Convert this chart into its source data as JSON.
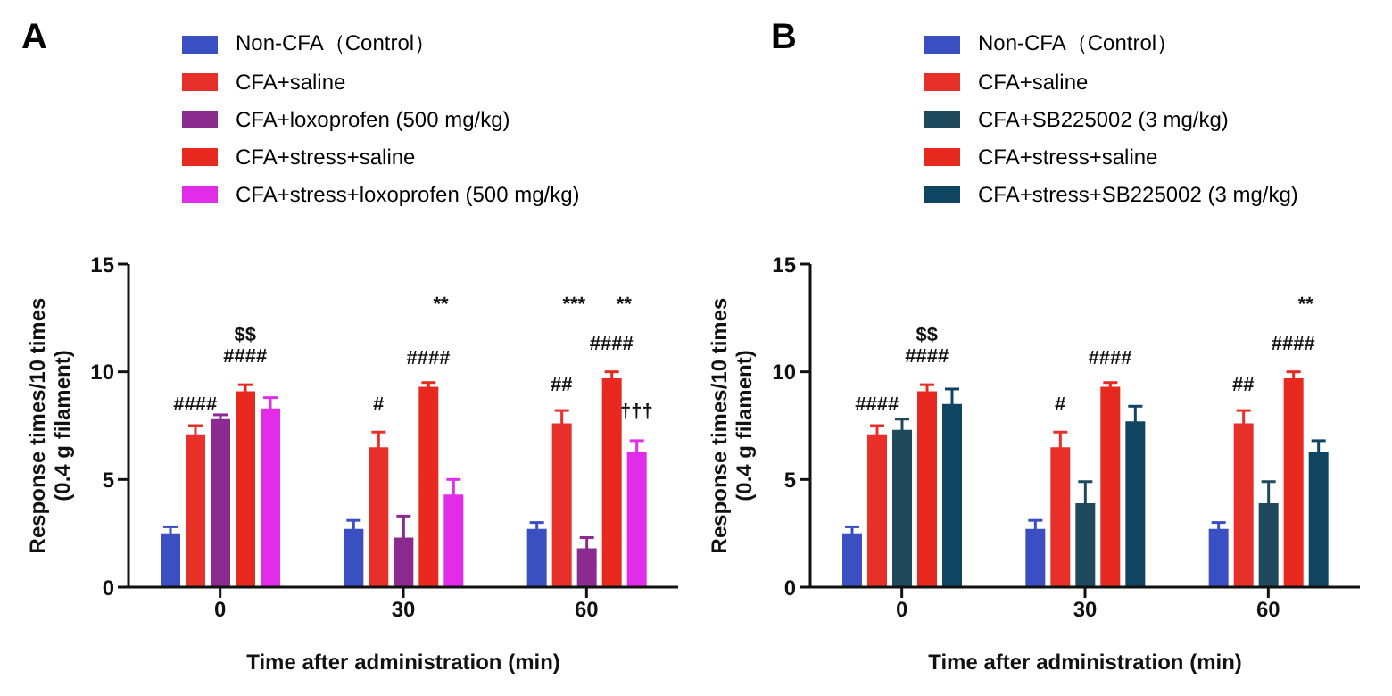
{
  "chart_data": [
    {
      "type": "bar",
      "title": "A",
      "categories": [
        "0",
        "30",
        "60"
      ],
      "xlabel": "Time after administration (min)",
      "ylabel": "Response times/10 times\n(0.4 g filament)",
      "ylim": [
        0,
        15
      ],
      "yticks": [
        0,
        5,
        10,
        15
      ],
      "grid": false,
      "legend": "top",
      "series": [
        {
          "name": "Non-CFA（Control）",
          "color": "#3a4fc1",
          "values": [
            2.5,
            2.7,
            2.7
          ],
          "errors": [
            0.3,
            0.4,
            0.3
          ]
        },
        {
          "name": "CFA+saline",
          "color": "#e8302a",
          "values": [
            7.1,
            6.5,
            7.6
          ],
          "errors": [
            0.4,
            0.7,
            0.6
          ]
        },
        {
          "name": "CFA+loxoprofen (500 mg/kg)",
          "color": "#8b2a8f",
          "values": [
            7.8,
            2.3,
            1.8
          ],
          "errors": [
            0.2,
            1.0,
            0.5
          ]
        },
        {
          "name": "CFA+stress+saline",
          "color": "#e8291f",
          "values": [
            9.1,
            9.3,
            9.7
          ],
          "errors": [
            0.3,
            0.2,
            0.3
          ]
        },
        {
          "name": "CFA+stress+loxoprofen (500 mg/kg)",
          "color": "#e22de8",
          "values": [
            8.3,
            4.3,
            6.3
          ],
          "errors": [
            0.5,
            0.7,
            0.5
          ]
        }
      ],
      "annotations": [
        "####",
        "####",
        "$$",
        "#",
        "####",
        "**",
        "##",
        "####",
        "***",
        "**",
        "†††"
      ]
    },
    {
      "type": "bar",
      "title": "B",
      "categories": [
        "0",
        "30",
        "60"
      ],
      "xlabel": "Time after administration (min)",
      "ylabel": "Response times/10 times\n(0.4 g filament)",
      "ylim": [
        0,
        15
      ],
      "yticks": [
        0,
        5,
        10,
        15
      ],
      "grid": false,
      "legend": "top",
      "series": [
        {
          "name": "Non-CFA（Control）",
          "color": "#3a4fc1",
          "values": [
            2.5,
            2.7,
            2.7
          ],
          "errors": [
            0.3,
            0.4,
            0.3
          ]
        },
        {
          "name": "CFA+saline",
          "color": "#e8302a",
          "values": [
            7.1,
            6.5,
            7.6
          ],
          "errors": [
            0.4,
            0.7,
            0.6
          ]
        },
        {
          "name": "CFA+SB225002 (3 mg/kg)",
          "color": "#1f4a5e",
          "values": [
            7.3,
            3.9,
            3.9
          ],
          "errors": [
            0.5,
            1.0,
            1.0
          ]
        },
        {
          "name": "CFA+stress+saline",
          "color": "#e8291f",
          "values": [
            9.1,
            9.3,
            9.7
          ],
          "errors": [
            0.3,
            0.2,
            0.3
          ]
        },
        {
          "name": "CFA+stress+SB225002 (3 mg/kg)",
          "color": "#0f4560",
          "values": [
            8.5,
            7.7,
            6.3
          ],
          "errors": [
            0.7,
            0.7,
            0.5
          ]
        }
      ],
      "annotations": [
        "####",
        "####",
        "$$",
        "#",
        "####",
        "##",
        "####",
        "**"
      ]
    }
  ]
}
